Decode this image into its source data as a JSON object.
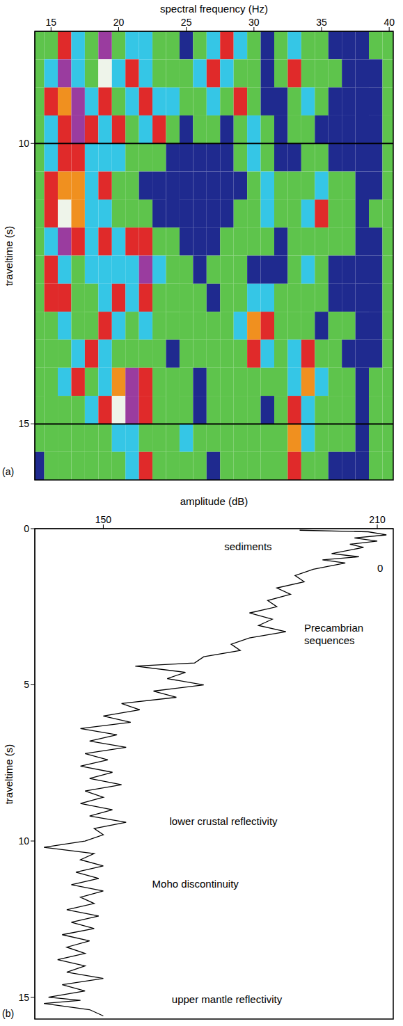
{
  "chart_data": [
    {
      "type": "heatmap",
      "panel": "(a)",
      "xlabel": "spectral frequency (Hz)",
      "ylabel": "traveltime (s)",
      "x": [
        14,
        15,
        16,
        17,
        18,
        19,
        20,
        21,
        22,
        23,
        24,
        25,
        26,
        27,
        28,
        29,
        30,
        31,
        32,
        33,
        34,
        35,
        36,
        37,
        38,
        39,
        40
      ],
      "y": [
        8.25,
        8.75,
        9.25,
        9.75,
        10.25,
        10.75,
        11.25,
        11.75,
        12.25,
        12.75,
        13.25,
        13.75,
        14.25,
        14.75,
        15.25,
        15.75
      ],
      "cells": [
        [
          1,
          1,
          3,
          2,
          1,
          4,
          1,
          2,
          2,
          1,
          1,
          0,
          1,
          2,
          3,
          2,
          1,
          0,
          1,
          2,
          1,
          1,
          0,
          0,
          0,
          1,
          1
        ],
        [
          1,
          2,
          4,
          2,
          1,
          6,
          2,
          3,
          2,
          1,
          1,
          1,
          2,
          3,
          2,
          1,
          1,
          0,
          1,
          3,
          1,
          1,
          1,
          0,
          0,
          0,
          1
        ],
        [
          1,
          3,
          5,
          4,
          2,
          3,
          1,
          2,
          3,
          2,
          2,
          1,
          1,
          2,
          1,
          3,
          1,
          0,
          0,
          1,
          2,
          1,
          0,
          0,
          0,
          0,
          1
        ],
        [
          1,
          2,
          3,
          4,
          3,
          2,
          3,
          1,
          2,
          3,
          1,
          0,
          1,
          1,
          0,
          1,
          2,
          1,
          0,
          1,
          1,
          0,
          0,
          0,
          0,
          0,
          1
        ],
        [
          1,
          2,
          3,
          3,
          2,
          2,
          2,
          1,
          1,
          1,
          0,
          0,
          0,
          0,
          0,
          1,
          2,
          1,
          0,
          0,
          1,
          1,
          0,
          0,
          0,
          0,
          1
        ],
        [
          1,
          3,
          5,
          5,
          2,
          3,
          1,
          1,
          0,
          0,
          0,
          0,
          0,
          0,
          0,
          0,
          1,
          2,
          1,
          1,
          1,
          2,
          1,
          1,
          0,
          0,
          1
        ],
        [
          1,
          3,
          6,
          5,
          2,
          2,
          1,
          1,
          1,
          0,
          0,
          0,
          0,
          0,
          0,
          1,
          1,
          2,
          1,
          1,
          2,
          3,
          1,
          1,
          0,
          1,
          1
        ],
        [
          1,
          2,
          4,
          3,
          2,
          3,
          2,
          3,
          3,
          1,
          1,
          0,
          0,
          0,
          1,
          1,
          1,
          1,
          0,
          1,
          1,
          1,
          1,
          1,
          0,
          0,
          1
        ],
        [
          1,
          3,
          2,
          1,
          2,
          2,
          2,
          2,
          4,
          2,
          1,
          1,
          0,
          1,
          1,
          1,
          0,
          0,
          0,
          1,
          2,
          1,
          0,
          0,
          0,
          0,
          1
        ],
        [
          1,
          3,
          3,
          1,
          1,
          2,
          3,
          2,
          3,
          1,
          1,
          1,
          1,
          0,
          1,
          1,
          2,
          2,
          1,
          1,
          1,
          1,
          0,
          0,
          0,
          0,
          1
        ],
        [
          1,
          1,
          2,
          1,
          1,
          3,
          2,
          1,
          2,
          1,
          1,
          1,
          1,
          1,
          1,
          2,
          5,
          3,
          1,
          1,
          1,
          0,
          1,
          1,
          0,
          0,
          1
        ],
        [
          1,
          1,
          1,
          2,
          3,
          2,
          1,
          1,
          1,
          1,
          0,
          1,
          1,
          1,
          1,
          1,
          3,
          2,
          1,
          2,
          3,
          1,
          1,
          0,
          0,
          0,
          1
        ],
        [
          1,
          1,
          2,
          3,
          1,
          2,
          5,
          4,
          3,
          1,
          1,
          1,
          0,
          1,
          1,
          1,
          1,
          1,
          1,
          2,
          5,
          2,
          1,
          1,
          0,
          1,
          1
        ],
        [
          1,
          1,
          1,
          1,
          2,
          3,
          6,
          4,
          3,
          1,
          1,
          1,
          0,
          1,
          1,
          1,
          1,
          0,
          1,
          3,
          2,
          1,
          1,
          1,
          0,
          1,
          1
        ],
        [
          1,
          1,
          1,
          1,
          1,
          1,
          2,
          2,
          1,
          1,
          1,
          2,
          1,
          1,
          1,
          1,
          1,
          1,
          1,
          5,
          2,
          1,
          1,
          1,
          0,
          1,
          1
        ],
        [
          0,
          1,
          1,
          1,
          1,
          1,
          1,
          2,
          3,
          1,
          1,
          1,
          1,
          0,
          1,
          1,
          1,
          1,
          1,
          3,
          1,
          1,
          0,
          0,
          0,
          1,
          1
        ]
      ],
      "zlim": [
        0,
        6
      ],
      "xlim": [
        13.8,
        40.3
      ],
      "xticks": [
        15,
        20,
        25,
        30,
        35,
        40
      ],
      "ylim": [
        8,
        16
      ],
      "yticks": [
        10,
        15
      ],
      "grid": true
    },
    {
      "type": "line",
      "panel": "(b)",
      "xlabel": "amplitude (dB)",
      "ylabel": "traveltime (s)",
      "color": "#000000",
      "y": [
        0.05,
        0.1,
        0.2,
        0.3,
        0.4,
        0.5,
        0.6,
        0.8,
        0.9,
        1.0,
        1.1,
        1.3,
        1.5,
        1.7,
        1.9,
        2.1,
        2.3,
        2.5,
        2.7,
        2.9,
        3.1,
        3.3,
        3.5,
        3.7,
        3.9,
        4.1,
        4.3,
        4.4,
        4.6,
        4.8,
        5.0,
        5.2,
        5.4,
        5.6,
        5.8,
        6.0,
        6.2,
        6.4,
        6.6,
        6.8,
        7.0,
        7.2,
        7.4,
        7.6,
        7.8,
        8.0,
        8.2,
        8.4,
        8.6,
        8.8,
        9.0,
        9.2,
        9.4,
        9.6,
        9.8,
        10.0,
        10.2,
        10.4,
        10.6,
        10.8,
        11.0,
        11.2,
        11.4,
        11.6,
        11.8,
        12.0,
        12.2,
        12.4,
        12.6,
        12.8,
        13.0,
        13.2,
        13.4,
        13.6,
        13.8,
        14.0,
        14.2,
        14.4,
        14.6,
        14.8,
        15.0,
        15.1,
        15.2,
        15.4,
        15.6
      ],
      "x": [
        193,
        208,
        212,
        205,
        210,
        204,
        207,
        200,
        206,
        198,
        203,
        196,
        192,
        194,
        188,
        191,
        186,
        188,
        182,
        187,
        184,
        190,
        182,
        178,
        180,
        172,
        170,
        157,
        168,
        164,
        172,
        161,
        166,
        154,
        158,
        150,
        156,
        145,
        153,
        147,
        155,
        146,
        151,
        145,
        152,
        147,
        154,
        146,
        150,
        145,
        152,
        147,
        155,
        148,
        150,
        146,
        137,
        148,
        145,
        150,
        144,
        149,
        143,
        150,
        145,
        148,
        142,
        149,
        143,
        148,
        141,
        147,
        142,
        146,
        140,
        146,
        142,
        150,
        141,
        146,
        138,
        145,
        137,
        147,
        150
      ],
      "xlim": [
        135,
        213.5
      ],
      "xticks": [
        150,
        210
      ],
      "ylim": [
        0,
        15.7
      ],
      "yticks": [
        0,
        5,
        10,
        15
      ],
      "annotations": [
        {
          "text": "sediments",
          "x": 176.5,
          "y": 0.6
        },
        {
          "text": "0",
          "x": 210,
          "y": 1.3
        },
        {
          "text": "Precambrian sequences",
          "x": 194,
          "y": 3.2
        },
        {
          "text": "lower crustal reflectivity",
          "x": 164.5,
          "y": 9.4
        },
        {
          "text": "Moho discontinuity",
          "x": 160.7,
          "y": 11.4
        },
        {
          "text": "upper mantle reflectivity",
          "x": 165,
          "y": 15.1
        }
      ]
    }
  ]
}
